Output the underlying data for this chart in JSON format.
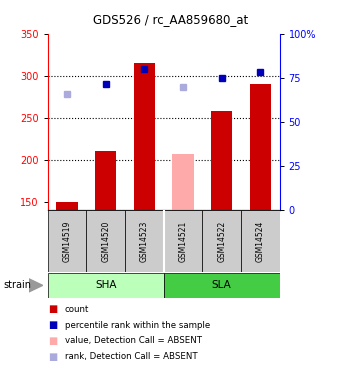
{
  "title": "GDS526 / rc_AA859680_at",
  "samples": [
    "GSM14519",
    "GSM14520",
    "GSM14523",
    "GSM14521",
    "GSM14522",
    "GSM14524"
  ],
  "bar_values": [
    150,
    210,
    315,
    null,
    258,
    290
  ],
  "bar_absent_values": [
    null,
    null,
    null,
    207,
    null,
    null
  ],
  "rank_present_values": [
    null,
    290,
    308,
    null,
    297,
    305
  ],
  "rank_absent_values": [
    278,
    null,
    null,
    286,
    null,
    null
  ],
  "ylim_left": [
    140,
    350
  ],
  "ylim_right": [
    0,
    100
  ],
  "yticks_left": [
    150,
    200,
    250,
    300,
    350
  ],
  "yticks_right": [
    0,
    25,
    50,
    75,
    100
  ],
  "ytick_labels_right": [
    "0",
    "25",
    "50",
    "75",
    "100%"
  ],
  "hgrid_lines": [
    200,
    250,
    300
  ],
  "color_bar": "#cc0000",
  "color_bar_absent": "#ffaaaa",
  "color_rank_present": "#0000bb",
  "color_rank_absent": "#aaaadd",
  "color_sha_bg": "#bbffbb",
  "color_sla_bg": "#44cc44",
  "color_sample_bg": "#cccccc",
  "bar_width": 0.55,
  "sha_group": [
    0,
    1,
    2
  ],
  "sla_group": [
    3,
    4,
    5
  ],
  "legend_items": [
    {
      "color": "#cc0000",
      "label": "count"
    },
    {
      "color": "#0000bb",
      "label": "percentile rank within the sample"
    },
    {
      "color": "#ffaaaa",
      "label": "value, Detection Call = ABSENT"
    },
    {
      "color": "#aaaadd",
      "label": "rank, Detection Call = ABSENT"
    }
  ]
}
